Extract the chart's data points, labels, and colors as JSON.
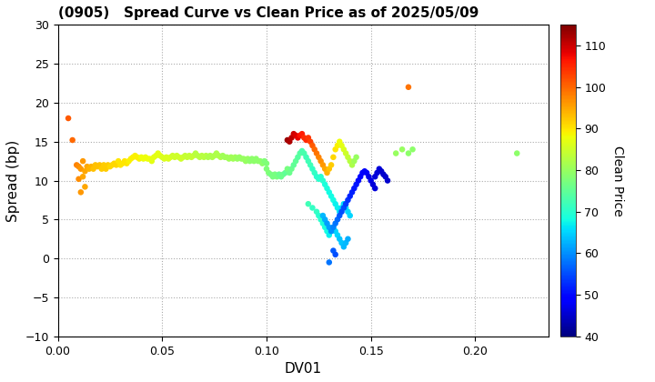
{
  "title": "(0905)   Spread Curve vs Clean Price as of 2025/05/09",
  "xlabel": "DV01",
  "ylabel": "Spread (bp)",
  "colorbar_label": "Clean Price",
  "xlim": [
    0.0,
    0.235
  ],
  "ylim": [
    -10,
    30
  ],
  "xticks": [
    0.0,
    0.05,
    0.1,
    0.15,
    0.2
  ],
  "yticks": [
    -10,
    -5,
    0,
    5,
    10,
    15,
    20,
    25,
    30
  ],
  "cmap_min": 40,
  "cmap_max": 115,
  "cbar_ticks": [
    40,
    50,
    60,
    70,
    80,
    90,
    100,
    110
  ],
  "points": [
    [
      0.005,
      18.0,
      101
    ],
    [
      0.007,
      15.2,
      100
    ],
    [
      0.009,
      12.0,
      98
    ],
    [
      0.01,
      10.2,
      97
    ],
    [
      0.01,
      11.8,
      97
    ],
    [
      0.011,
      11.5,
      96
    ],
    [
      0.011,
      8.5,
      96
    ],
    [
      0.012,
      12.5,
      96
    ],
    [
      0.012,
      10.5,
      95
    ],
    [
      0.013,
      11.2,
      95
    ],
    [
      0.013,
      9.2,
      95
    ],
    [
      0.014,
      11.8,
      95
    ],
    [
      0.015,
      11.5,
      94
    ],
    [
      0.016,
      11.8,
      94
    ],
    [
      0.017,
      11.5,
      93
    ],
    [
      0.018,
      12.0,
      93
    ],
    [
      0.019,
      11.8,
      93
    ],
    [
      0.02,
      12.0,
      93
    ],
    [
      0.021,
      11.5,
      92
    ],
    [
      0.022,
      12.0,
      92
    ],
    [
      0.023,
      11.5,
      92
    ],
    [
      0.024,
      12.0,
      92
    ],
    [
      0.025,
      11.8,
      91
    ],
    [
      0.026,
      12.0,
      91
    ],
    [
      0.027,
      12.2,
      91
    ],
    [
      0.028,
      12.0,
      91
    ],
    [
      0.029,
      12.5,
      90
    ],
    [
      0.03,
      12.0,
      90
    ],
    [
      0.031,
      12.2,
      90
    ],
    [
      0.032,
      12.5,
      90
    ],
    [
      0.033,
      12.2,
      90
    ],
    [
      0.034,
      12.5,
      89
    ],
    [
      0.035,
      12.8,
      89
    ],
    [
      0.036,
      13.0,
      89
    ],
    [
      0.037,
      13.2,
      89
    ],
    [
      0.038,
      13.0,
      89
    ],
    [
      0.039,
      12.8,
      89
    ],
    [
      0.04,
      13.0,
      88
    ],
    [
      0.041,
      12.8,
      88
    ],
    [
      0.042,
      13.0,
      88
    ],
    [
      0.043,
      12.8,
      88
    ],
    [
      0.044,
      12.8,
      88
    ],
    [
      0.045,
      12.5,
      87
    ],
    [
      0.046,
      13.0,
      87
    ],
    [
      0.047,
      13.2,
      87
    ],
    [
      0.048,
      13.5,
      87
    ],
    [
      0.049,
      13.2,
      87
    ],
    [
      0.05,
      13.0,
      86
    ],
    [
      0.051,
      12.8,
      86
    ],
    [
      0.052,
      13.0,
      86
    ],
    [
      0.053,
      12.8,
      86
    ],
    [
      0.054,
      13.0,
      86
    ],
    [
      0.055,
      13.2,
      85
    ],
    [
      0.056,
      13.0,
      85
    ],
    [
      0.057,
      13.2,
      85
    ],
    [
      0.058,
      13.0,
      85
    ],
    [
      0.059,
      12.8,
      85
    ],
    [
      0.06,
      13.0,
      85
    ],
    [
      0.061,
      13.2,
      84
    ],
    [
      0.062,
      13.0,
      84
    ],
    [
      0.063,
      13.2,
      84
    ],
    [
      0.064,
      13.0,
      84
    ],
    [
      0.065,
      13.2,
      84
    ],
    [
      0.066,
      13.5,
      83
    ],
    [
      0.067,
      13.2,
      83
    ],
    [
      0.068,
      13.0,
      83
    ],
    [
      0.069,
      13.2,
      83
    ],
    [
      0.07,
      13.0,
      83
    ],
    [
      0.071,
      13.2,
      83
    ],
    [
      0.072,
      13.0,
      82
    ],
    [
      0.073,
      13.2,
      82
    ],
    [
      0.074,
      13.0,
      82
    ],
    [
      0.075,
      13.2,
      82
    ],
    [
      0.076,
      13.5,
      82
    ],
    [
      0.077,
      13.2,
      82
    ],
    [
      0.078,
      13.0,
      82
    ],
    [
      0.079,
      13.2,
      81
    ],
    [
      0.08,
      13.0,
      81
    ],
    [
      0.081,
      13.0,
      81
    ],
    [
      0.082,
      12.8,
      81
    ],
    [
      0.083,
      13.0,
      81
    ],
    [
      0.084,
      12.8,
      81
    ],
    [
      0.085,
      13.0,
      81
    ],
    [
      0.086,
      12.8,
      80
    ],
    [
      0.087,
      13.0,
      80
    ],
    [
      0.088,
      12.8,
      80
    ],
    [
      0.089,
      12.8,
      80
    ],
    [
      0.09,
      12.5,
      80
    ],
    [
      0.091,
      12.8,
      80
    ],
    [
      0.092,
      12.5,
      79
    ],
    [
      0.093,
      12.8,
      79
    ],
    [
      0.094,
      12.5,
      79
    ],
    [
      0.095,
      12.8,
      79
    ],
    [
      0.096,
      12.5,
      79
    ],
    [
      0.097,
      12.5,
      79
    ],
    [
      0.098,
      12.2,
      79
    ],
    [
      0.099,
      12.5,
      78
    ],
    [
      0.1,
      12.2,
      78
    ],
    [
      0.1,
      11.5,
      78
    ],
    [
      0.101,
      11.0,
      78
    ],
    [
      0.102,
      10.8,
      77
    ],
    [
      0.103,
      10.5,
      77
    ],
    [
      0.104,
      10.8,
      77
    ],
    [
      0.105,
      10.5,
      77
    ],
    [
      0.106,
      10.8,
      76
    ],
    [
      0.107,
      10.5,
      76
    ],
    [
      0.108,
      10.8,
      76
    ],
    [
      0.109,
      11.0,
      75
    ],
    [
      0.11,
      15.2,
      113
    ],
    [
      0.111,
      15.0,
      112
    ],
    [
      0.112,
      15.5,
      111
    ],
    [
      0.113,
      16.0,
      110
    ],
    [
      0.114,
      15.8,
      109
    ],
    [
      0.115,
      15.5,
      108
    ],
    [
      0.116,
      15.8,
      107
    ],
    [
      0.117,
      16.0,
      106
    ],
    [
      0.118,
      15.5,
      105
    ],
    [
      0.119,
      15.2,
      105
    ],
    [
      0.12,
      15.5,
      104
    ],
    [
      0.121,
      15.0,
      103
    ],
    [
      0.122,
      14.5,
      101
    ],
    [
      0.123,
      14.0,
      100
    ],
    [
      0.124,
      13.5,
      99
    ],
    [
      0.125,
      13.0,
      98
    ],
    [
      0.126,
      12.5,
      97
    ],
    [
      0.127,
      12.0,
      96
    ],
    [
      0.128,
      11.5,
      95
    ],
    [
      0.129,
      11.0,
      94
    ],
    [
      0.13,
      11.5,
      93
    ],
    [
      0.131,
      12.0,
      92
    ],
    [
      0.132,
      13.0,
      91
    ],
    [
      0.133,
      14.0,
      90
    ],
    [
      0.134,
      14.5,
      89
    ],
    [
      0.135,
      15.0,
      88
    ],
    [
      0.136,
      14.5,
      87
    ],
    [
      0.137,
      14.0,
      86
    ],
    [
      0.138,
      13.5,
      85
    ],
    [
      0.139,
      13.0,
      84
    ],
    [
      0.14,
      12.5,
      83
    ],
    [
      0.141,
      12.0,
      82
    ],
    [
      0.142,
      12.5,
      81
    ],
    [
      0.143,
      13.0,
      80
    ],
    [
      0.11,
      11.5,
      77
    ],
    [
      0.111,
      11.0,
      76
    ],
    [
      0.112,
      11.5,
      76
    ],
    [
      0.113,
      12.0,
      75
    ],
    [
      0.114,
      12.5,
      75
    ],
    [
      0.115,
      13.0,
      74
    ],
    [
      0.116,
      13.5,
      74
    ],
    [
      0.117,
      13.8,
      73
    ],
    [
      0.118,
      13.5,
      73
    ],
    [
      0.119,
      13.0,
      72
    ],
    [
      0.12,
      12.5,
      72
    ],
    [
      0.121,
      12.0,
      72
    ],
    [
      0.122,
      11.5,
      71
    ],
    [
      0.123,
      11.0,
      71
    ],
    [
      0.124,
      10.5,
      70
    ],
    [
      0.125,
      10.2,
      70
    ],
    [
      0.126,
      10.5,
      70
    ],
    [
      0.127,
      10.0,
      70
    ],
    [
      0.128,
      9.5,
      69
    ],
    [
      0.129,
      9.0,
      69
    ],
    [
      0.13,
      8.5,
      68
    ],
    [
      0.131,
      8.0,
      68
    ],
    [
      0.132,
      7.5,
      68
    ],
    [
      0.133,
      7.0,
      67
    ],
    [
      0.134,
      6.5,
      67
    ],
    [
      0.135,
      6.0,
      66
    ],
    [
      0.136,
      6.5,
      66
    ],
    [
      0.137,
      7.0,
      66
    ],
    [
      0.138,
      6.5,
      65
    ],
    [
      0.139,
      6.0,
      65
    ],
    [
      0.14,
      5.5,
      65
    ],
    [
      0.12,
      7.0,
      72
    ],
    [
      0.122,
      6.5,
      71
    ],
    [
      0.124,
      6.0,
      71
    ],
    [
      0.125,
      5.5,
      70
    ],
    [
      0.126,
      5.0,
      70
    ],
    [
      0.127,
      4.5,
      69
    ],
    [
      0.128,
      4.0,
      69
    ],
    [
      0.129,
      3.5,
      68
    ],
    [
      0.13,
      3.0,
      67
    ],
    [
      0.131,
      3.5,
      67
    ],
    [
      0.132,
      4.0,
      66
    ],
    [
      0.133,
      3.5,
      65
    ],
    [
      0.134,
      3.0,
      65
    ],
    [
      0.135,
      2.5,
      64
    ],
    [
      0.136,
      2.0,
      64
    ],
    [
      0.137,
      1.5,
      63
    ],
    [
      0.138,
      2.0,
      63
    ],
    [
      0.139,
      2.5,
      62
    ],
    [
      0.127,
      5.5,
      63
    ],
    [
      0.128,
      5.0,
      62
    ],
    [
      0.129,
      4.5,
      61
    ],
    [
      0.13,
      4.0,
      61
    ],
    [
      0.131,
      3.5,
      60
    ],
    [
      0.132,
      4.0,
      59
    ],
    [
      0.133,
      4.5,
      58
    ],
    [
      0.134,
      5.0,
      57
    ],
    [
      0.135,
      5.5,
      56
    ],
    [
      0.136,
      6.0,
      55
    ],
    [
      0.137,
      6.5,
      55
    ],
    [
      0.138,
      7.0,
      54
    ],
    [
      0.139,
      7.5,
      53
    ],
    [
      0.14,
      8.0,
      52
    ],
    [
      0.141,
      8.5,
      52
    ],
    [
      0.142,
      9.0,
      51
    ],
    [
      0.143,
      9.5,
      51
    ],
    [
      0.144,
      10.0,
      50
    ],
    [
      0.145,
      10.5,
      49
    ],
    [
      0.146,
      11.0,
      49
    ],
    [
      0.147,
      11.2,
      48
    ],
    [
      0.148,
      11.0,
      48
    ],
    [
      0.149,
      10.5,
      47
    ],
    [
      0.15,
      10.0,
      47
    ],
    [
      0.151,
      9.5,
      46
    ],
    [
      0.152,
      9.0,
      46
    ],
    [
      0.152,
      10.5,
      46
    ],
    [
      0.153,
      11.0,
      46
    ],
    [
      0.154,
      11.5,
      46
    ],
    [
      0.155,
      11.2,
      45
    ],
    [
      0.156,
      10.8,
      45
    ],
    [
      0.157,
      10.5,
      45
    ],
    [
      0.158,
      10.0,
      45
    ],
    [
      0.13,
      -0.5,
      58
    ],
    [
      0.132,
      1.0,
      56
    ],
    [
      0.133,
      0.5,
      55
    ],
    [
      0.162,
      13.5,
      80
    ],
    [
      0.165,
      14.0,
      80
    ],
    [
      0.168,
      13.5,
      79
    ],
    [
      0.17,
      14.0,
      79
    ],
    [
      0.168,
      22.0,
      99
    ],
    [
      0.22,
      13.5,
      79
    ]
  ]
}
